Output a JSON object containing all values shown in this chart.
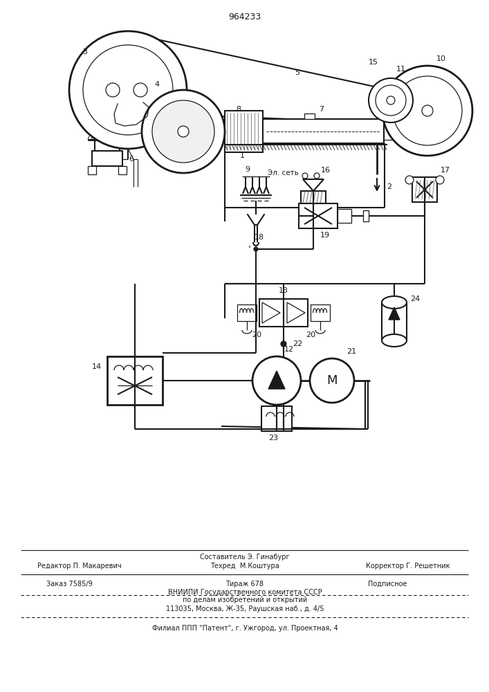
{
  "patent_number": "964233",
  "background_color": "#ffffff",
  "line_color": "#1a1a1a",
  "fig_width": 7.07,
  "fig_height": 10.0,
  "dpi": 100,
  "footer_line1_center_top": "Составитель Э. Гинабург",
  "footer_line1_left": "Редактор П. Макаревич",
  "footer_line1_center": "Техред  М.Коштура",
  "footer_line1_right": "Корректор Г. Решетник",
  "footer_line2_left": "Заказ 7585/9",
  "footer_line2_center": "Тираж 678",
  "footer_line2_right": "Подписное",
  "footer_line3": "ВНИИПИ Государственного комитета СССР",
  "footer_line4": "по делам изобретений и открытий",
  "footer_line5": "113035, Москва, Ж-35, Раушская наб., д. 4/5",
  "footer_last": "Филиал ППП \"Патент\", г. Ужгород, ул. Проектная, 4"
}
